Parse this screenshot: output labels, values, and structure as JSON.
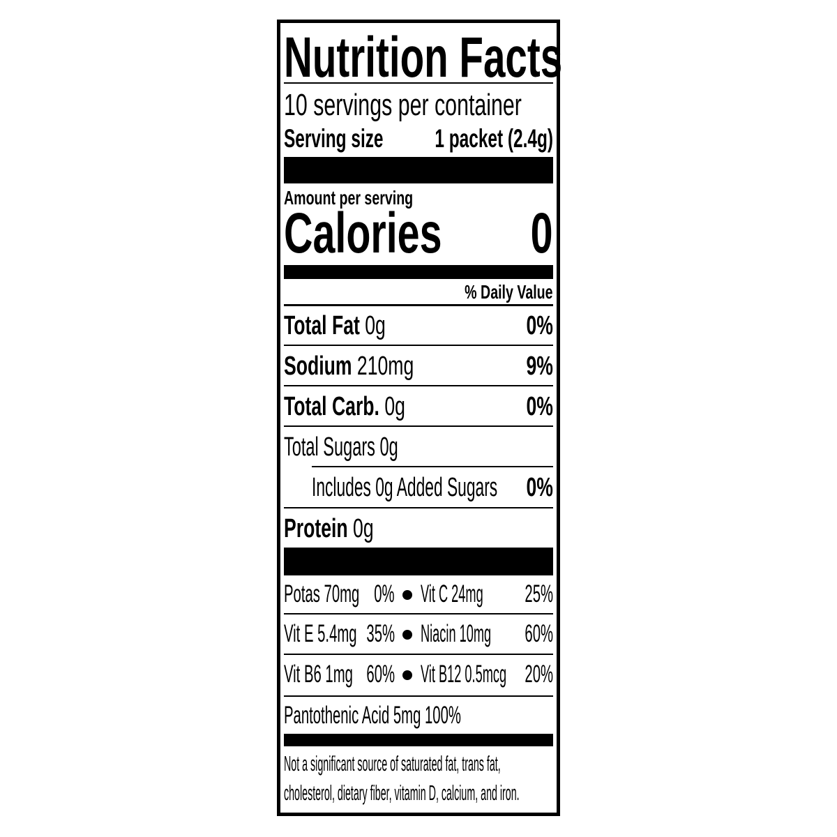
{
  "title": "Nutrition Facts",
  "servings_per_container": "10 servings per container",
  "serving_size": {
    "label": "Serving size",
    "value": "1 packet (2.4g)"
  },
  "amount_per_serving": "Amount per serving",
  "calories": {
    "label": "Calories",
    "value": "0"
  },
  "daily_value_header": "% Daily Value",
  "nutrients": [
    {
      "name": "Total Fat",
      "amount": " 0g",
      "dv": "0%"
    },
    {
      "name": "Sodium",
      "amount": " 210mg",
      "dv": "9%"
    },
    {
      "name": "Total Carb.",
      "amount": " 0g",
      "dv": "0%"
    },
    {
      "name": "Total Sugars 0g"
    },
    {
      "name": "Includes 0g Added Sugars",
      "dv": "0%"
    },
    {
      "name": "Protein",
      "amount": " 0g"
    }
  ],
  "micronutrients": [
    {
      "left": "Potas 70mg",
      "left_dv": "0%",
      "right": "Vit C  24mg",
      "right_dv": "25%"
    },
    {
      "left": "Vit E  5.4mg",
      "left_dv": "35%",
      "right": "Niacin 10mg",
      "right_dv": "60%"
    },
    {
      "left": "Vit B6  1mg",
      "left_dv": "60%",
      "right": "Vit B12  0.5mcg",
      "right_dv": "20%"
    }
  ],
  "pantothenic": "Pantothenic Acid 5mg  100%",
  "footnote": [
    "Not a significant source of saturated fat, trans fat,",
    "cholesterol, dietary fiber, vitamin D, calcium, and iron."
  ]
}
